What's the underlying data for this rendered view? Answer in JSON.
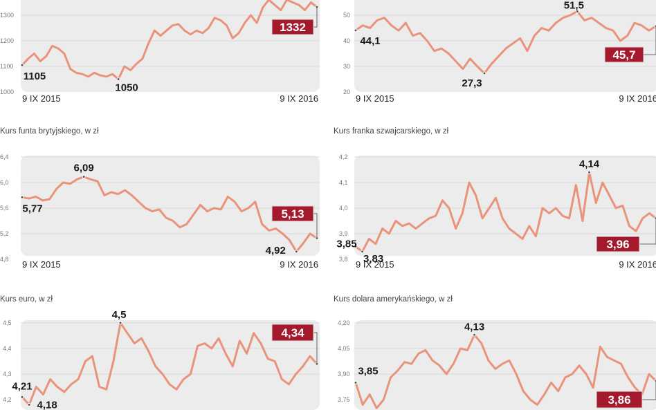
{
  "colors": {
    "line": "#e8937a",
    "panel": "#ececec",
    "highlight": "#a5192c",
    "grid": "#d9d9d9"
  },
  "chart_data": [
    {
      "type": "line",
      "title": "",
      "x_start": "9 IX 2015",
      "x_end": "9 IX 2016",
      "ticks": [
        "1000",
        "1100",
        "1200",
        "1300"
      ],
      "tick_values": [
        1000,
        1100,
        1200,
        1300
      ],
      "values": [
        1105,
        1130,
        1150,
        1120,
        1140,
        1180,
        1170,
        1150,
        1090,
        1075,
        1070,
        1060,
        1075,
        1065,
        1060,
        1070,
        1050,
        1100,
        1085,
        1110,
        1130,
        1190,
        1240,
        1220,
        1240,
        1260,
        1265,
        1240,
        1225,
        1240,
        1230,
        1250,
        1290,
        1280,
        1260,
        1210,
        1230,
        1270,
        1300,
        1270,
        1330,
        1360,
        1340,
        1320,
        1360,
        1350,
        1340,
        1320,
        1350,
        1332
      ],
      "annotations": [
        {
          "label": "1105",
          "index": 0,
          "style": "plain"
        },
        {
          "label": "1050",
          "index": 16,
          "style": "plain"
        },
        {
          "label": "1332",
          "index": 49,
          "style": "highlight"
        }
      ]
    },
    {
      "type": "line",
      "title": "",
      "x_start": "9 IX 2015",
      "x_end": "9 IX 2016",
      "ticks": [
        "20",
        "30",
        "40",
        "50"
      ],
      "tick_values": [
        20,
        30,
        40,
        50
      ],
      "values": [
        44.1,
        46,
        45,
        48,
        49,
        46,
        44,
        47,
        42,
        43,
        40,
        36,
        37,
        35,
        32,
        29,
        33,
        30,
        27.3,
        31,
        34,
        37,
        39,
        41,
        36,
        42,
        45,
        44,
        47,
        49,
        50,
        51.5,
        48,
        49,
        47,
        45,
        44,
        40,
        42,
        47,
        46,
        44,
        45.7
      ],
      "annotations": [
        {
          "label": "44,1",
          "index": 0,
          "style": "plain"
        },
        {
          "label": "27,3",
          "index": 18,
          "style": "plain"
        },
        {
          "label": "51,5",
          "index": 31,
          "style": "plain"
        },
        {
          "label": "45,7",
          "index": 42,
          "style": "highlight"
        }
      ]
    },
    {
      "type": "line",
      "title": "Kurs funta brytyjskiego, w zł",
      "x_start": "9 IX 2015",
      "x_end": "9 IX 2016",
      "ticks": [
        "4,8",
        "5,2",
        "5,6",
        "6,0",
        "6,4"
      ],
      "tick_values": [
        4.8,
        5.2,
        5.6,
        6.0,
        6.4
      ],
      "values": [
        5.77,
        5.75,
        5.78,
        5.72,
        5.74,
        5.9,
        6.0,
        5.98,
        6.05,
        6.09,
        6.05,
        6.02,
        5.8,
        5.85,
        5.82,
        5.88,
        5.8,
        5.7,
        5.6,
        5.55,
        5.58,
        5.45,
        5.4,
        5.3,
        5.35,
        5.5,
        5.65,
        5.55,
        5.6,
        5.58,
        5.78,
        5.7,
        5.55,
        5.6,
        5.7,
        5.35,
        5.25,
        5.28,
        5.2,
        5.1,
        4.92,
        5.05,
        5.2,
        5.13
      ],
      "annotations": [
        {
          "label": "5,77",
          "index": 0,
          "style": "plain"
        },
        {
          "label": "6,09",
          "index": 9,
          "style": "plain"
        },
        {
          "label": "4,92",
          "index": 40,
          "style": "plain"
        },
        {
          "label": "5,13",
          "index": 43,
          "style": "highlight"
        }
      ]
    },
    {
      "type": "line",
      "title": "Kurs franka szwajcarskiego, w zł",
      "x_start": "9 IX 2015",
      "x_end": "9 IX 2016",
      "ticks": [
        "3,8",
        "3,9",
        "4,0",
        "4,1",
        "4,2"
      ],
      "tick_values": [
        3.8,
        3.9,
        4.0,
        4.1,
        4.2
      ],
      "values": [
        3.85,
        3.83,
        3.88,
        3.86,
        3.92,
        3.9,
        3.95,
        3.93,
        3.94,
        3.92,
        3.94,
        3.96,
        3.97,
        4.03,
        4.0,
        3.92,
        3.98,
        4.1,
        4.05,
        3.96,
        4.0,
        4.04,
        3.96,
        3.92,
        3.9,
        3.88,
        3.93,
        3.89,
        4.0,
        3.98,
        4.0,
        3.97,
        3.96,
        4.09,
        3.95,
        4.14,
        4.02,
        4.1,
        4.05,
        4.0,
        4.01,
        3.93,
        3.91,
        3.96,
        3.98,
        3.96
      ],
      "annotations": [
        {
          "label": "3,85",
          "index": 0,
          "style": "plain"
        },
        {
          "label": "3,83",
          "index": 1,
          "style": "plain"
        },
        {
          "label": "4,14",
          "index": 35,
          "style": "plain"
        },
        {
          "label": "3,96",
          "index": 45,
          "style": "highlight"
        }
      ]
    },
    {
      "type": "line",
      "title": "Kurs euro, w zł",
      "x_start": "9 IX 2015",
      "x_end": "9 IX 2016",
      "ticks": [
        "4,2",
        "4,3",
        "4,4",
        "4,5"
      ],
      "tick_values": [
        4.2,
        4.3,
        4.4,
        4.5
      ],
      "values": [
        4.21,
        4.18,
        4.25,
        4.22,
        4.28,
        4.25,
        4.23,
        4.26,
        4.28,
        4.35,
        4.37,
        4.25,
        4.24,
        4.35,
        4.5,
        4.46,
        4.42,
        4.44,
        4.39,
        4.33,
        4.3,
        4.26,
        4.24,
        4.28,
        4.3,
        4.41,
        4.42,
        4.4,
        4.44,
        4.38,
        4.33,
        4.43,
        4.38,
        4.46,
        4.42,
        4.36,
        4.35,
        4.28,
        4.26,
        4.3,
        4.33,
        4.37,
        4.34
      ],
      "annotations": [
        {
          "label": "4,21",
          "index": 0,
          "style": "plain"
        },
        {
          "label": "4,18",
          "index": 1,
          "style": "plain"
        },
        {
          "label": "4,5",
          "index": 14,
          "style": "plain"
        },
        {
          "label": "4,34",
          "index": 42,
          "style": "highlight"
        }
      ]
    },
    {
      "type": "line",
      "title": "Kurs dolara amerykańskiego, w zł",
      "x_start": "9 IX 2015",
      "x_end": "9 IX 2016",
      "ticks": [
        "3,75",
        "3,90",
        "4,05",
        "4,20"
      ],
      "tick_values": [
        3.75,
        3.9,
        4.05,
        4.2
      ],
      "values": [
        3.85,
        3.72,
        3.78,
        3.7,
        3.75,
        3.88,
        3.92,
        3.97,
        3.96,
        4.02,
        4.04,
        3.98,
        3.95,
        3.9,
        3.96,
        4.05,
        4.04,
        4.13,
        4.08,
        3.98,
        3.93,
        3.96,
        3.98,
        3.9,
        3.8,
        3.75,
        3.72,
        3.78,
        3.85,
        3.8,
        3.88,
        3.9,
        3.95,
        3.9,
        3.82,
        4.06,
        4.0,
        3.98,
        3.96,
        3.88,
        3.82,
        3.78,
        3.9,
        3.86
      ],
      "annotations": [
        {
          "label": "3,85",
          "index": 0,
          "style": "plain"
        },
        {
          "label": "4,13",
          "index": 17,
          "style": "plain"
        },
        {
          "label": "3,86",
          "index": 43,
          "style": "highlight"
        }
      ]
    }
  ]
}
